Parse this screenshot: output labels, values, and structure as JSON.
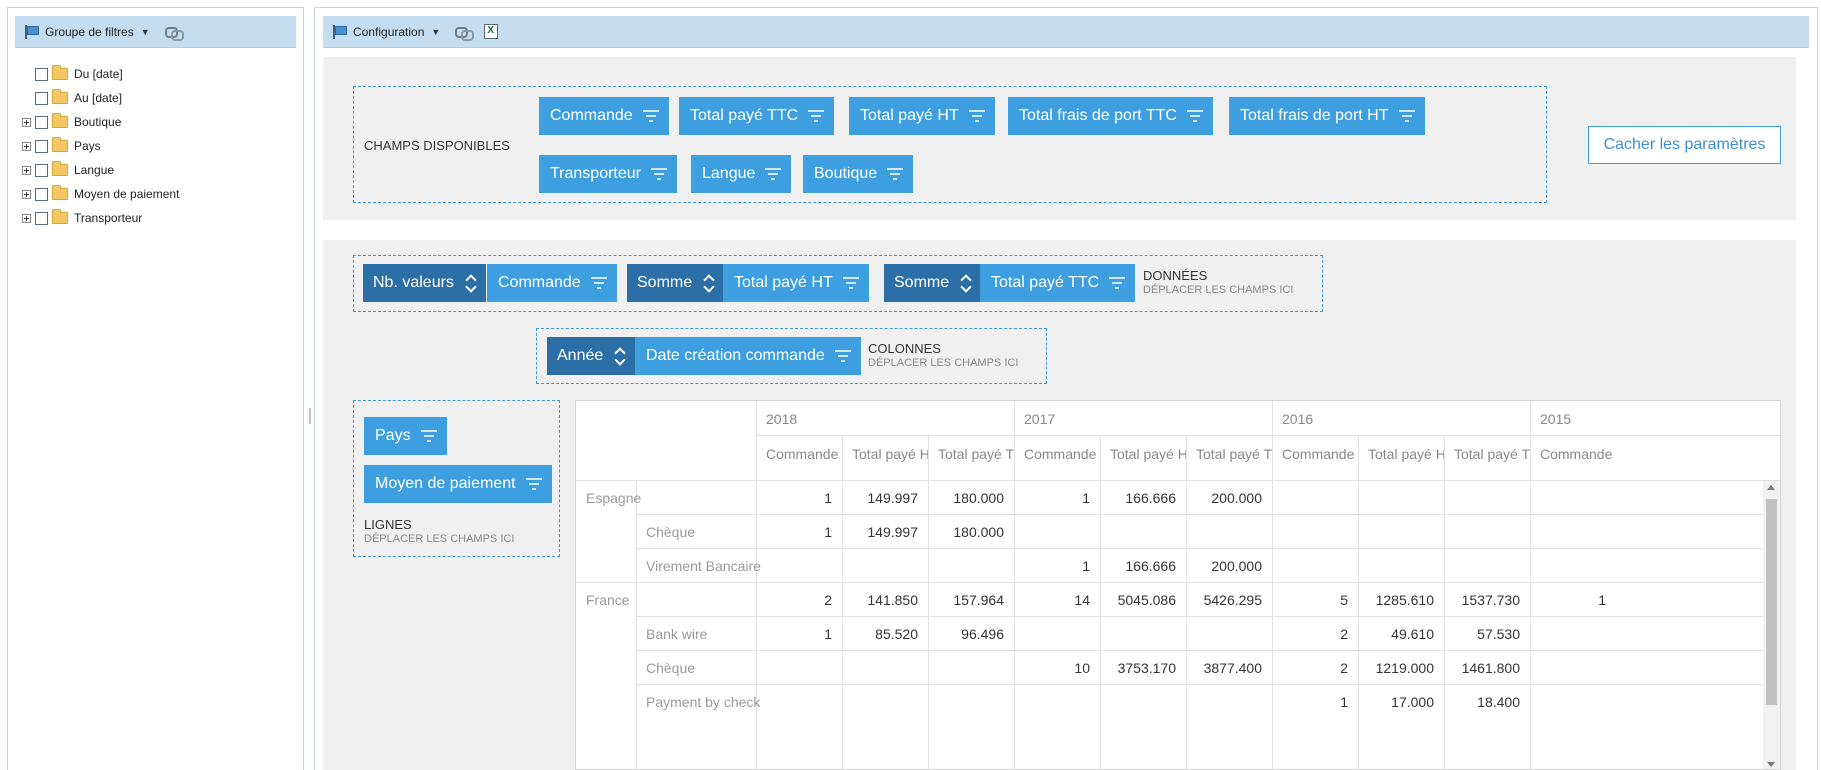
{
  "left_toolbar": {
    "title": "Groupe de filtres"
  },
  "filter_tree": [
    {
      "label": "Du [date]",
      "expandable": false
    },
    {
      "label": "Au [date]",
      "expandable": false
    },
    {
      "label": "Boutique",
      "expandable": true
    },
    {
      "label": "Pays",
      "expandable": true
    },
    {
      "label": "Langue",
      "expandable": true
    },
    {
      "label": "Moyen de paiement",
      "expandable": true
    },
    {
      "label": "Transporteur",
      "expandable": true
    }
  ],
  "right_toolbar": {
    "title": "Configuration"
  },
  "available_fields": {
    "label": "CHAMPS DISPONIBLES",
    "fields": [
      "Commande",
      "Total payé TTC",
      "Total payé HT",
      "Total frais de port TTC",
      "Total frais de port HT",
      "Transporteur",
      "Langue",
      "Boutique"
    ]
  },
  "hide_button": "Cacher les paramètres",
  "data_area": {
    "label": "DONNÉES",
    "hint": "DÉPLACER LES CHAMPS ICI",
    "items": [
      {
        "aggregate": "Nb. valeurs",
        "field": "Commande"
      },
      {
        "aggregate": "Somme",
        "field": "Total payé HT"
      },
      {
        "aggregate": "Somme",
        "field": "Total payé TTC"
      }
    ]
  },
  "column_area": {
    "label": "COLONNES",
    "hint": "DÉPLACER LES CHAMPS ICI",
    "items": [
      {
        "aggregate": "Année",
        "field": "Date création commande"
      }
    ]
  },
  "row_area": {
    "label": "LIGNES",
    "hint": "DÉPLACER LES CHAMPS ICI",
    "fields": [
      "Pays",
      "Moyen de paiement"
    ]
  },
  "grid": {
    "years": [
      "2018",
      "2017",
      "2016",
      "2015"
    ],
    "subheaders": [
      "Commande (N",
      "Total payé HT",
      "Total payé TTC"
    ],
    "rows": [
      {
        "country": "Espagne",
        "method": "",
        "values": [
          "1",
          "149.997",
          "180.000",
          "1",
          "166.666",
          "200.000",
          "",
          "",
          "",
          ""
        ]
      },
      {
        "country": "",
        "method": "Chèque",
        "values": [
          "1",
          "149.997",
          "180.000",
          "",
          "",
          "",
          "",
          "",
          "",
          ""
        ]
      },
      {
        "country": "",
        "method": "Virement Bancaire",
        "values": [
          "",
          "",
          "",
          "1",
          "166.666",
          "200.000",
          "",
          "",
          "",
          ""
        ]
      },
      {
        "country": "France",
        "method": "",
        "values": [
          "2",
          "141.850",
          "157.964",
          "14",
          "5045.086",
          "5426.295",
          "5",
          "1285.610",
          "1537.730",
          "1"
        ]
      },
      {
        "country": "",
        "method": "Bank wire",
        "values": [
          "1",
          "85.520",
          "96.496",
          "",
          "",
          "",
          "2",
          "49.610",
          "57.530",
          ""
        ]
      },
      {
        "country": "",
        "method": "Chèque",
        "values": [
          "",
          "",
          "",
          "10",
          "3753.170",
          "3877.400",
          "2",
          "1219.000",
          "1461.800",
          ""
        ]
      },
      {
        "country": "",
        "method": "Payment by check",
        "values": [
          "",
          "",
          "",
          "",
          "",
          "",
          "1",
          "17.000",
          "18.400",
          ""
        ]
      }
    ]
  },
  "colors": {
    "chip": "#3d9ee0",
    "aggregate_chip": "#2c6fa6",
    "toolbar": "#c5ddf0",
    "area_bg": "#f0f0f0"
  }
}
